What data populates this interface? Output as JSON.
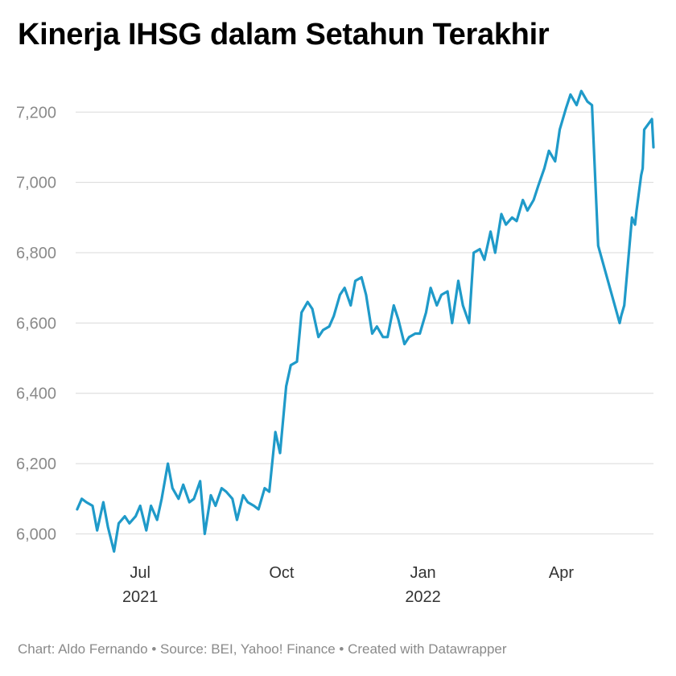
{
  "chart_data": {
    "type": "line",
    "title": "Kinerja IHSG dalam Setahun Terakhir",
    "xlabel": "",
    "ylabel": "",
    "ylim": [
      5930,
      7290
    ],
    "yticks": [
      6000,
      6200,
      6400,
      6600,
      6800,
      7000,
      7200
    ],
    "ytick_labels": [
      "6,000",
      "6,200",
      "6,400",
      "6,600",
      "6,800",
      "7,000",
      "7,200"
    ],
    "xlim": [
      "2021-05-20",
      "2022-05-31"
    ],
    "xticks": [
      {
        "date": "2021-07-01",
        "label": "Jul",
        "sublabel": "2021"
      },
      {
        "date": "2021-10-01",
        "label": "Oct",
        "sublabel": ""
      },
      {
        "date": "2022-01-01",
        "label": "Jan",
        "sublabel": "2022"
      },
      {
        "date": "2022-04-01",
        "label": "Apr",
        "sublabel": ""
      }
    ],
    "grid": true,
    "color": "#1f9ac9",
    "x": [
      "2021-05-21",
      "2021-05-24",
      "2021-05-27",
      "2021-05-31",
      "2021-06-03",
      "2021-06-07",
      "2021-06-10",
      "2021-06-14",
      "2021-06-17",
      "2021-06-21",
      "2021-06-24",
      "2021-06-28",
      "2021-07-01",
      "2021-07-05",
      "2021-07-08",
      "2021-07-12",
      "2021-07-15",
      "2021-07-19",
      "2021-07-22",
      "2021-07-26",
      "2021-07-29",
      "2021-08-02",
      "2021-08-05",
      "2021-08-09",
      "2021-08-12",
      "2021-08-16",
      "2021-08-19",
      "2021-08-23",
      "2021-08-26",
      "2021-08-30",
      "2021-09-02",
      "2021-09-06",
      "2021-09-09",
      "2021-09-13",
      "2021-09-16",
      "2021-09-20",
      "2021-09-23",
      "2021-09-27",
      "2021-09-30",
      "2021-10-04",
      "2021-10-07",
      "2021-10-11",
      "2021-10-14",
      "2021-10-18",
      "2021-10-21",
      "2021-10-25",
      "2021-10-28",
      "2021-11-01",
      "2021-11-04",
      "2021-11-08",
      "2021-11-11",
      "2021-11-15",
      "2021-11-18",
      "2021-11-22",
      "2021-11-25",
      "2021-11-29",
      "2021-12-02",
      "2021-12-06",
      "2021-12-09",
      "2021-12-13",
      "2021-12-16",
      "2021-12-20",
      "2021-12-23",
      "2021-12-27",
      "2021-12-30",
      "2022-01-03",
      "2022-01-06",
      "2022-01-10",
      "2022-01-13",
      "2022-01-17",
      "2022-01-20",
      "2022-01-24",
      "2022-01-27",
      "2022-01-31",
      "2022-02-03",
      "2022-02-07",
      "2022-02-10",
      "2022-02-14",
      "2022-02-17",
      "2022-02-21",
      "2022-02-24",
      "2022-02-28",
      "2022-03-03",
      "2022-03-07",
      "2022-03-10",
      "2022-03-14",
      "2022-03-17",
      "2022-03-21",
      "2022-03-24",
      "2022-03-28",
      "2022-03-31",
      "2022-04-04",
      "2022-04-07",
      "2022-04-11",
      "2022-04-14",
      "2022-04-18",
      "2022-04-21",
      "2022-04-25",
      "2022-05-09",
      "2022-05-10",
      "2022-05-12",
      "2022-05-17",
      "2022-05-19",
      "2022-05-20",
      "2022-05-23",
      "2022-05-24",
      "2022-05-25",
      "2022-05-30",
      "2022-05-31"
    ],
    "values": [
      6070,
      6100,
      6090,
      6080,
      6010,
      6090,
      6020,
      5950,
      6030,
      6050,
      6030,
      6050,
      6080,
      6010,
      6080,
      6040,
      6100,
      6200,
      6130,
      6100,
      6140,
      6090,
      6100,
      6150,
      6000,
      6110,
      6080,
      6130,
      6120,
      6100,
      6040,
      6110,
      6090,
      6080,
      6070,
      6130,
      6120,
      6290,
      6230,
      6420,
      6480,
      6490,
      6630,
      6660,
      6640,
      6560,
      6580,
      6590,
      6620,
      6680,
      6700,
      6650,
      6720,
      6730,
      6680,
      6570,
      6590,
      6560,
      6560,
      6650,
      6610,
      6540,
      6560,
      6570,
      6570,
      6630,
      6700,
      6650,
      6680,
      6690,
      6600,
      6720,
      6650,
      6600,
      6800,
      6810,
      6780,
      6860,
      6800,
      6910,
      6880,
      6900,
      6890,
      6950,
      6920,
      6950,
      6990,
      7040,
      7090,
      7060,
      7150,
      7210,
      7250,
      7220,
      7260,
      7230,
      7220,
      6820,
      6600,
      6620,
      6650,
      6900,
      6880,
      6920,
      7020,
      7040,
      7150,
      7180,
      7100
    ],
    "source_note": "Chart: Aldo Fernando • Source: BEI, Yahoo! Finance • Created with Datawrapper"
  }
}
